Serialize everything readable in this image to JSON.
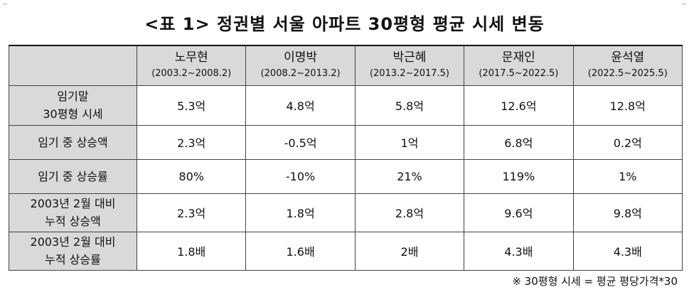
{
  "title": "<표 1> 정권별 서울 아파트 30평형 평균 시세 변동",
  "columns": [
    {
      "name": "노무현",
      "period": "(2003.2~2008.2)"
    },
    {
      "name": "이명박",
      "period": "(2008.2~2013.2)"
    },
    {
      "name": "박근혜",
      "period": "(2013.2~2017.5)"
    },
    {
      "name": "문재인",
      "period": "(2017.5~2022.5)"
    },
    {
      "name": "윤석열",
      "period": "(2022.5~2025.5)"
    }
  ],
  "rows": [
    {
      "label_lines": [
        "임기말",
        "30평형 시세"
      ],
      "values": [
        "5.3억",
        "4.8억",
        "5.8억",
        "12.6억",
        "12.8억"
      ]
    },
    {
      "label_lines": [
        "임기 중 상승액"
      ],
      "values": [
        "2.3억",
        "-0.5억",
        "1억",
        "6.8억",
        "0.2억"
      ]
    },
    {
      "label_lines": [
        "임기 중 상승률"
      ],
      "values": [
        "80%",
        "-10%",
        "21%",
        "119%",
        "1%"
      ]
    },
    {
      "label_lines": [
        "2003년 2월 대비",
        "누적 상승액"
      ],
      "values": [
        "2.3억",
        "1.8억",
        "2.8억",
        "9.6억",
        "9.8억"
      ]
    },
    {
      "label_lines": [
        "2003년 2월 대비",
        "누적 상승률"
      ],
      "values": [
        "1.8배",
        "1.6배",
        "2배",
        "4.3배",
        "4.3배"
      ]
    }
  ],
  "note": "※ 30평형 시세 = 평균 평당가격*30"
}
